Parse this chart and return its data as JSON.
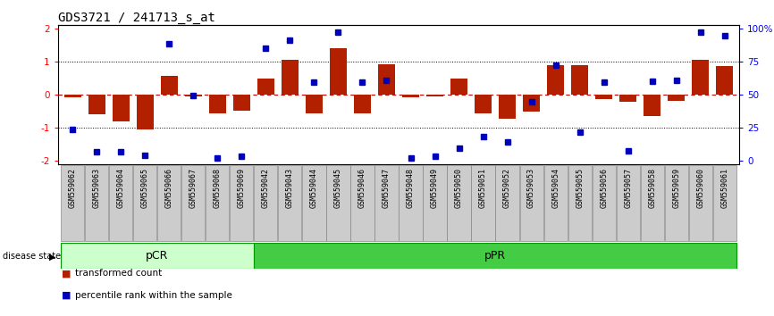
{
  "title": "GDS3721 / 241713_s_at",
  "samples": [
    "GSM559062",
    "GSM559063",
    "GSM559064",
    "GSM559065",
    "GSM559066",
    "GSM559067",
    "GSM559068",
    "GSM559069",
    "GSM559042",
    "GSM559043",
    "GSM559044",
    "GSM559045",
    "GSM559046",
    "GSM559047",
    "GSM559048",
    "GSM559049",
    "GSM559050",
    "GSM559051",
    "GSM559052",
    "GSM559053",
    "GSM559054",
    "GSM559055",
    "GSM559056",
    "GSM559057",
    "GSM559058",
    "GSM559059",
    "GSM559060",
    "GSM559061"
  ],
  "bar_values": [
    -0.07,
    -0.6,
    -0.8,
    -1.05,
    0.58,
    -0.05,
    -0.55,
    -0.48,
    0.48,
    1.05,
    -0.55,
    1.42,
    -0.55,
    0.92,
    -0.07,
    -0.04,
    0.48,
    -0.55,
    -0.72,
    -0.52,
    0.9,
    0.9,
    -0.12,
    -0.2,
    -0.65,
    -0.18,
    1.05,
    0.88
  ],
  "blue_values": [
    -1.05,
    -1.72,
    -1.72,
    -1.82,
    1.55,
    -0.02,
    -1.92,
    -1.85,
    1.42,
    1.65,
    0.38,
    1.88,
    0.38,
    0.45,
    -1.92,
    -1.85,
    -1.62,
    -1.25,
    -1.42,
    -0.22,
    0.9,
    -1.12,
    0.38,
    -1.68,
    0.42,
    0.45,
    1.88,
    1.78
  ],
  "pCR_count": 8,
  "total_count": 28,
  "ylim": [
    -2.1,
    2.1
  ],
  "yticks": [
    -2,
    -1,
    0,
    1,
    2
  ],
  "right_ytick_labels": [
    "0",
    "25",
    "50",
    "75",
    "100%"
  ],
  "right_ytick_positions": [
    -2.0,
    -1.0,
    0.0,
    1.0,
    2.0
  ],
  "bar_color": "#b22000",
  "blue_color": "#0000bb",
  "pCR_facecolor": "#ccffcc",
  "pCR_edgecolor": "#009900",
  "pPR_facecolor": "#44cc44",
  "pPR_edgecolor": "#009900",
  "sample_box_color": "#cccccc",
  "sample_box_edge": "#888888",
  "hline_color": "#cc0000",
  "dotted_color": "black",
  "title_fontsize": 10,
  "label_fontsize": 6,
  "tick_fontsize": 7.5
}
